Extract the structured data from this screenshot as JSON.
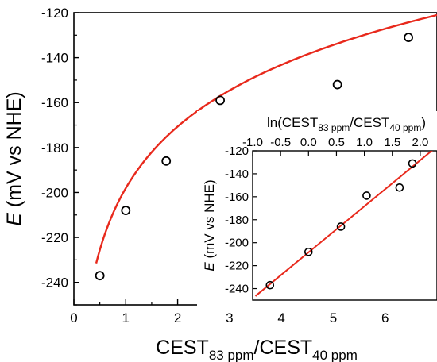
{
  "chart_data": [
    {
      "id": "main",
      "type": "scatter",
      "x": [
        0.5,
        1.0,
        1.78,
        2.82,
        5.08,
        6.45
      ],
      "y": [
        -237,
        -208,
        -186,
        -159,
        -152,
        -131
      ],
      "fit": {
        "type": "line",
        "a": -198.1,
        "b": 39.6,
        "form": "y = a + b*ln(x)",
        "x_range": [
          0.43,
          7.0
        ]
      },
      "xlim": [
        0,
        7
      ],
      "ylim": [
        -250,
        -120
      ],
      "xticks": [
        0,
        1,
        2,
        3,
        4,
        5,
        6
      ],
      "yticks": [
        -240,
        -220,
        -200,
        -180,
        -160,
        -140,
        -120
      ],
      "xlabel": {
        "main": "CEST",
        "sub1": "83 ppm",
        "sep": "/CEST",
        "sub2": "40 ppm"
      },
      "ylabel": {
        "italic": "E",
        "rest": " (mV vs NHE)"
      },
      "marker_color": "#000000",
      "fit_color": "#e8291c"
    },
    {
      "id": "inset",
      "type": "scatter",
      "x": [
        -0.69,
        0.0,
        0.58,
        1.04,
        1.63,
        1.86
      ],
      "y": [
        -237,
        -208,
        -186,
        -159,
        -152,
        -131
      ],
      "fit": {
        "type": "line",
        "a": -208.4,
        "b": 40.1,
        "form": "y = a + b*x",
        "x_range": [
          -0.95,
          2.3
        ]
      },
      "xlim": [
        -1.0,
        2.3
      ],
      "ylim": [
        -250,
        -120
      ],
      "xticks": [
        -1.0,
        -0.5,
        0.0,
        0.5,
        1.0,
        1.5,
        2.0
      ],
      "xtick_labels": [
        "-1.0",
        "-0.5",
        "0.0",
        "0.5",
        "1.0",
        "1.5",
        "2.0"
      ],
      "yticks": [
        -240,
        -220,
        -200,
        -180,
        -160,
        -140,
        -120
      ],
      "xlabel": {
        "main": "ln(CEST",
        "sub1": "83 ppm",
        "sep": "/CEST",
        "sub2": "40 ppm",
        "end": ")"
      },
      "ylabel": {
        "italic": "E",
        "rest": " (mV vs NHE)"
      },
      "marker_color": "#000000",
      "fit_color": "#e8291c"
    }
  ]
}
